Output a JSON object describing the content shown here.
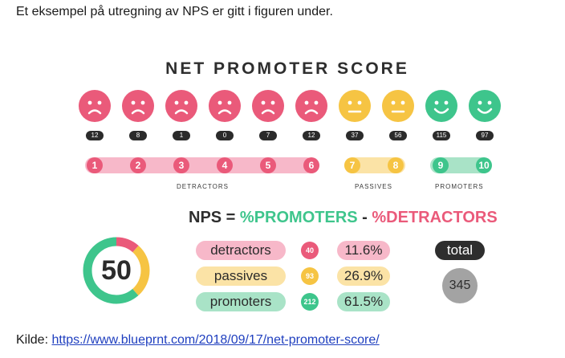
{
  "intro_text": "Et eksempel på utregning av NPS er gitt i figuren under.",
  "figure": {
    "title": "NET PROMOTER SCORE",
    "faces": [
      {
        "icon": "sad-face-icon",
        "color": "#ea5a7a",
        "count": "12"
      },
      {
        "icon": "sad-face-icon",
        "color": "#ea5a7a",
        "count": "8"
      },
      {
        "icon": "sad-face-icon",
        "color": "#ea5a7a",
        "count": "1"
      },
      {
        "icon": "sad-face-icon",
        "color": "#ea5a7a",
        "count": "0"
      },
      {
        "icon": "sad-face-icon",
        "color": "#ea5a7a",
        "count": "7"
      },
      {
        "icon": "sad-face-icon",
        "color": "#ea5a7a",
        "count": "12"
      },
      {
        "icon": "neutral-face-icon",
        "color": "#f6c443",
        "count": "37"
      },
      {
        "icon": "neutral-face-icon",
        "color": "#f6c443",
        "count": "56"
      },
      {
        "icon": "happy-face-icon",
        "color": "#3ec58c",
        "count": "115"
      },
      {
        "icon": "happy-face-icon",
        "color": "#3ec58c",
        "count": "97"
      }
    ],
    "scale": [
      "1",
      "2",
      "3",
      "4",
      "5",
      "6",
      "7",
      "8",
      "9",
      "10"
    ],
    "groups": {
      "detractors": "DETRACTORS",
      "passives": "PASSIVES",
      "promoters": "PROMOTERS"
    },
    "formula": {
      "prefix": "NPS = ",
      "promoters": "%PROMOTERS",
      "minus": " - ",
      "detractors": "%DETRACTORS"
    },
    "score": "50",
    "breakdown": [
      {
        "label": "detractors",
        "count": "40",
        "percent": "11.6%"
      },
      {
        "label": "passives",
        "count": "93",
        "percent": "26.9%"
      },
      {
        "label": "promoters",
        "count": "212",
        "percent": "61.5%"
      }
    ],
    "total_label": "total",
    "total_value": "345",
    "colors": {
      "detractor": "#ea5a7a",
      "passive": "#f6c443",
      "promoter": "#3ec58c",
      "detractor_light": "#f7b8c9",
      "passive_light": "#fbe3a6",
      "promoter_light": "#a9e3c7"
    }
  },
  "source": {
    "prefix": "Kilde: ",
    "link_text": "https://www.blueprnt.com/2018/09/17/net-promoter-score/"
  }
}
